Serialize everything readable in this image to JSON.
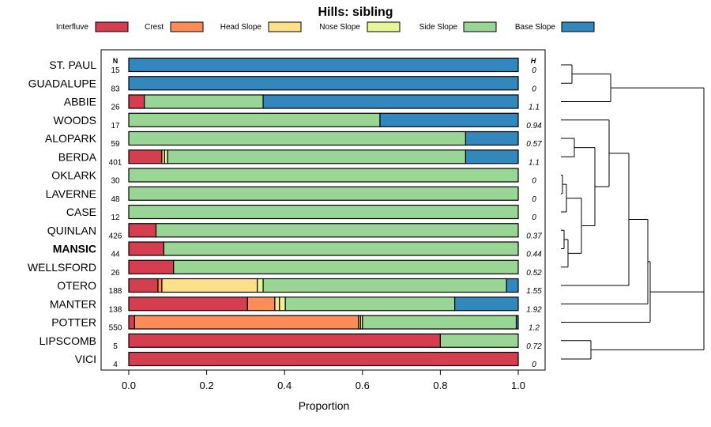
{
  "chart_data": {
    "type": "bar",
    "orientation": "horizontal",
    "stacked": true,
    "title": "Hills: sibling",
    "xlabel": "Proportion",
    "ylabel": "",
    "xlim": [
      0,
      1
    ],
    "x_ticks": [
      "0.0",
      "0.2",
      "0.4",
      "0.6",
      "0.8",
      "1.0"
    ],
    "n_header": "N",
    "h_header": "H",
    "highlight": "MANSIC",
    "legend": [
      {
        "name": "Interfluve",
        "color": "#d53e4f"
      },
      {
        "name": "Crest",
        "color": "#fc8d59"
      },
      {
        "name": "Head Slope",
        "color": "#fee08b"
      },
      {
        "name": "Nose Slope",
        "color": "#e6f598"
      },
      {
        "name": "Side Slope",
        "color": "#99d594"
      },
      {
        "name": "Base Slope",
        "color": "#3288bd"
      }
    ],
    "categories": [
      "ST. PAUL",
      "GUADALUPE",
      "ABBIE",
      "WOODS",
      "ALOPARK",
      "BERDA",
      "OKLARK",
      "LAVERNE",
      "CASE",
      "QUINLAN",
      "MANSIC",
      "WELLSFORD",
      "OTERO",
      "MANTER",
      "POTTER",
      "LIPSCOMB",
      "VICI"
    ],
    "n_values": [
      "15",
      "83",
      "26",
      "17",
      "59",
      "401",
      "30",
      "48",
      "12",
      "426",
      "44",
      "26",
      "188",
      "138",
      "550",
      "5",
      "4"
    ],
    "h_values": [
      "0",
      "0",
      "1.1",
      "0.94",
      "0.57",
      "1.1",
      "0",
      "0",
      "0",
      "0.37",
      "0.44",
      "0.52",
      "1.55",
      "1.92",
      "1.2",
      "0.72",
      "0"
    ],
    "series": [
      {
        "name": "Interfluve",
        "values": [
          0,
          0,
          0.04,
          0,
          0,
          0.085,
          0,
          0,
          0,
          0.07,
          0.09,
          0.115,
          0.075,
          0.305,
          0.015,
          0.8,
          1.0
        ]
      },
      {
        "name": "Crest",
        "values": [
          0,
          0,
          0,
          0,
          0,
          0,
          0,
          0,
          0,
          0,
          0,
          0,
          0.01,
          0.07,
          0.575,
          0,
          0
        ]
      },
      {
        "name": "Head Slope",
        "values": [
          0,
          0,
          0,
          0,
          0,
          0.007,
          0,
          0,
          0,
          0,
          0,
          0,
          0.245,
          0.012,
          0.005,
          0,
          0
        ]
      },
      {
        "name": "Nose Slope",
        "values": [
          0,
          0,
          0,
          0,
          0,
          0.008,
          0,
          0,
          0,
          0,
          0,
          0,
          0.015,
          0.015,
          0.005,
          0,
          0
        ]
      },
      {
        "name": "Side Slope",
        "values": [
          0,
          0,
          0.305,
          0.645,
          0.865,
          0.765,
          1.0,
          1.0,
          1.0,
          0.93,
          0.91,
          0.885,
          0.625,
          0.435,
          0.395,
          0.2,
          0
        ]
      },
      {
        "name": "Base Slope",
        "values": [
          1.0,
          1.0,
          0.655,
          0.355,
          0.135,
          0.135,
          0,
          0,
          0,
          0,
          0,
          0,
          0.03,
          0.163,
          0.005,
          0,
          0
        ]
      }
    ],
    "dendrogram": "hierarchical clustering of series (leaf order = categories)"
  }
}
